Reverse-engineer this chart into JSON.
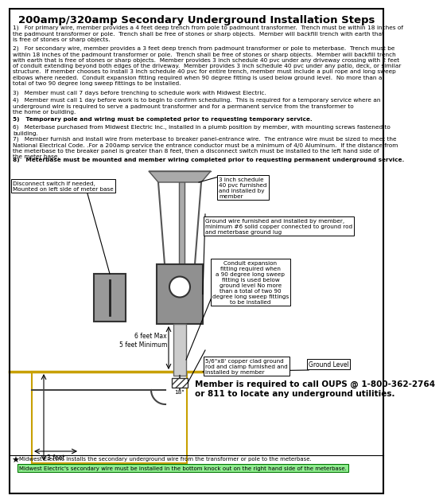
{
  "title": "200amp/320amp Secondary Underground Installation Steps",
  "bg_color": "#ffffff",
  "text_color": "#000000",
  "para1": "1)   For primary wire, member provides a 4 feet deep trench from pole to padmount transformer.  Trench must be within 18 inches of\nthe padmount transformer or pole.  Trench shall be free of stones or sharp objects.  Member will backfill trench with earth that\nis free of stones or sharp objects.",
  "para2": "2)   For secondary wire, member provides a 3 feet deep trench from padmount transformer or pole to meterbase.  Trench must be\nwithin 18 inches of the padmount transformer or pole.  Trench shall be free of stones or sharp objects.  Member will backfill trench\nwith earth that is free of stones or sharp objects.  Member provides 3 inch schedule 40 pvc under any driveway crossing with 2 feet\nof conduit extending beyond both edges of the driveway.  Member provides 3 inch schedule 40 pvc under any patio, deck, or similar\nstructure.  If member chooses to install 3 inch schedule 40 pvc for entire trench, member must include a pull rope and long sweep\nelbows where needed.  Conduit expansion fitting required when 90 degree fitting is used below ground level.  No more than a\ntotal of two 90 degree long sweep fittings to be installed.",
  "para3": "3)   Member must call 7 days before trenching to schedule work with Midwest Electric.",
  "para4": "4)   Member must call 1 day before work is to begin to confirm scheduling.  This is required for a temporary service where an\nunderground wire is required to serve a padmount transformer and for a permanent service from the transformer to\nthe home or building.",
  "para5": "5)   Temporary pole and wiring must be completed prior to requesting temporary service.",
  "para6": "6)   Meterbase purchased from Midwest Electric Inc., installed in a plumb position by member, with mounting screws fastened to\nbuilding.",
  "para7": "7)   Member furnish and install wire from meterbase to breaker panel-entrance wire.  The entrance wire must be sized to meet the\nNational Electrical Code. .For a 200amp service the entrance conductor must be a minimum of 4/0 Aluminum.  If the distance from\nthe meterbase to the breaker panel is greater than 8 feet, then a disconnect switch must be installed to the left hand side of\nthe meter base.",
  "para8": "8)   Meterbase must be mounted and member wiring completed prior to requesting permanent underground service.",
  "footer1": "Midwest Electric installs the secondary underground wire from the transformer or pole to the meterbase.",
  "footer2": "Midwest Electric's secondary wire must be installed in the bottom knock out on the right hand side of the meterbase.",
  "oups_text": "Member is required to call OUPS @ 1-800-362-2764\nor 811 to locate any underground utilities.",
  "label_disconnect": "Disconnect switch if needed,\nMounted on left side of meter base",
  "label_pvc": "3 inch schedule\n40 pvc furnished\nand installed by\nmember",
  "label_ground_wire": "Ground wire furnished and installed by member,\nminimum #6 solid copper connected to ground rod\nand meterbase ground lug",
  "label_conduit": "Conduit expansion\nfitting required when\na 90 degree long sweep\nfitting is used below\nground level No more\nthan a total of two 90\ndegree long sweep fittings\nto be installed",
  "label_ground_rod": "5/6\"x8' copper clad ground\nrod and clamp furnished and\ninstalled by member",
  "label_ground_level": "Ground Level",
  "label_6feet": "6 feet Max\n5 feet Minimum",
  "label_3feet": "3 feet",
  "label_18": "18\"",
  "gray_dark": "#808080",
  "gray_light": "#aaaaaa",
  "gray_mid": "#909090",
  "brown": "#c8a000",
  "green_highlight": "#90ee90"
}
